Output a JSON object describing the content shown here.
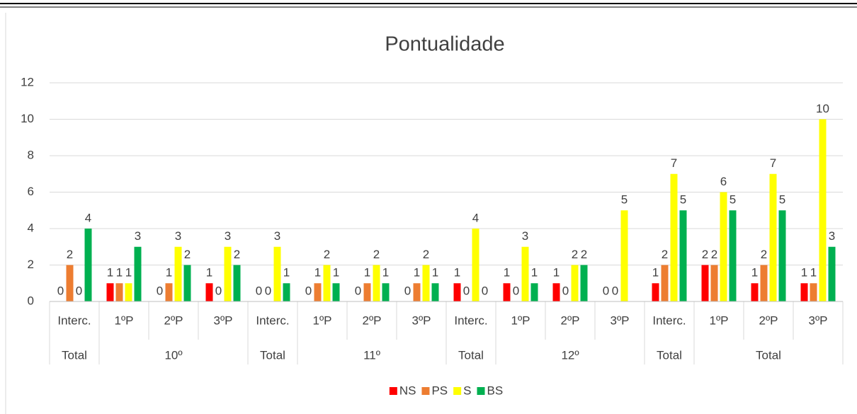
{
  "chart_data": {
    "type": "bar",
    "title": "Pontualidade",
    "groups": [
      {
        "label": "Total",
        "categories": [
          "Interc."
        ]
      },
      {
        "label": "10º",
        "categories": [
          "1ºP",
          "2ºP",
          "3ºP"
        ]
      },
      {
        "label": "Total",
        "categories": [
          "Interc."
        ]
      },
      {
        "label": "11º",
        "categories": [
          "1ºP",
          "2ºP",
          "3ºP"
        ]
      },
      {
        "label": "Total",
        "categories": [
          "Interc."
        ]
      },
      {
        "label": "12º",
        "categories": [
          "1ºP",
          "2ºP",
          "3ºP"
        ]
      },
      {
        "label": "Total",
        "categories": [
          "Interc."
        ]
      },
      {
        "label": "Total",
        "categories": [
          "1ºP",
          "2ºP",
          "3ºP"
        ]
      }
    ],
    "series": [
      {
        "name": "NS",
        "color": "#ff0000",
        "values": [
          0,
          1,
          0,
          1,
          0,
          0,
          0,
          0,
          1,
          1,
          1,
          0,
          1,
          2,
          1,
          1
        ]
      },
      {
        "name": "PS",
        "color": "#ed7d31",
        "values": [
          2,
          1,
          1,
          0,
          0,
          1,
          1,
          1,
          0,
          0,
          0,
          0,
          2,
          2,
          2,
          1
        ]
      },
      {
        "name": "S",
        "color": "#ffff00",
        "values": [
          0,
          1,
          3,
          3,
          3,
          2,
          2,
          2,
          4,
          3,
          2,
          5,
          7,
          6,
          7,
          10
        ]
      },
      {
        "name": "BS",
        "color": "#00b050",
        "values": [
          4,
          3,
          2,
          2,
          1,
          1,
          1,
          1,
          0,
          1,
          2,
          null,
          5,
          5,
          5,
          3
        ]
      }
    ],
    "ylim": [
      0,
      12
    ],
    "yticks": [
      0,
      2,
      4,
      6,
      8,
      10,
      12
    ],
    "grid": true,
    "legend": "bottom"
  }
}
